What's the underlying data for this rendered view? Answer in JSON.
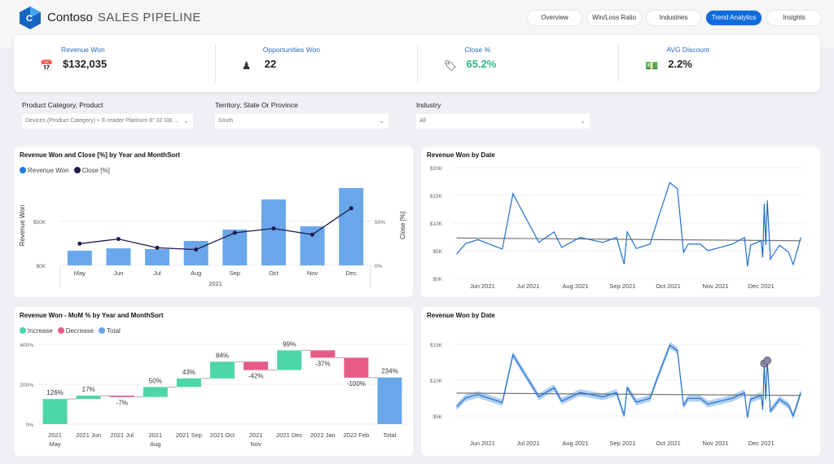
{
  "header": {
    "brand": "Contoso",
    "title": "SALES PIPELINE",
    "logo_letter": "C",
    "tabs": [
      {
        "label": "Overview",
        "active": false
      },
      {
        "label": "Win/Loss Ratio",
        "active": false
      },
      {
        "label": "Industries",
        "active": false
      },
      {
        "label": "Trend Analytics",
        "active": true
      },
      {
        "label": "Insights",
        "active": false
      }
    ]
  },
  "kpis": [
    {
      "label": "Revenue Won",
      "value": "$132,035",
      "icon": "calendar-icon"
    },
    {
      "label": "Opportunities Won",
      "value": "22",
      "icon": "person-icon"
    },
    {
      "label": "Close %",
      "value": "65.2%",
      "icon": "percent-tag-icon",
      "color": "#2bb57e"
    },
    {
      "label": "AVG Discount",
      "value": "2.2%",
      "icon": "money-icon"
    }
  ],
  "filters": [
    {
      "label": "Product Category, Product",
      "value": "Devices (Product Category) + E-reader Platinum 8\" 32 GB ..."
    },
    {
      "label": "Territory, State Or Province",
      "value": "South"
    },
    {
      "label": "Industry",
      "value": "All"
    }
  ],
  "colors": {
    "accent": "#0f6cdb",
    "bar": "#6aa7ea",
    "line": "#1f1b4d",
    "increase": "#4fd6a8",
    "decrease": "#e75b85",
    "total": "#6aa7ea",
    "trend": "#1f6fce"
  },
  "chart_data": [
    {
      "type": "bar",
      "title": "Revenue Won and Close [%] by Year and MonthSort",
      "xlabel": "2021",
      "ylabel": "Revenue Won",
      "y2label": "Close [%]",
      "categories": [
        "May",
        "Jun",
        "Jul",
        "Aug",
        "Sep",
        "Oct",
        "Nov",
        "Dec"
      ],
      "series": [
        {
          "name": "Revenue Won",
          "type": "bar",
          "values": [
            16700,
            19400,
            18500,
            27800,
            40700,
            75000,
            44400,
            88000
          ]
        },
        {
          "name": "Close [%]",
          "type": "line",
          "values": [
            24.7,
            30,
            20,
            18,
            37,
            42,
            35,
            65
          ]
        }
      ],
      "yticks": [
        "$0K",
        "$50K"
      ],
      "y2ticks": [
        "0%",
        "50%"
      ],
      "ylim": [
        0,
        100000
      ],
      "y2lim": [
        0,
        100
      ],
      "legend": "top-left"
    },
    {
      "type": "bar",
      "title": "Revenue Won - MoM % by Year and MonthSort",
      "subtype": "waterfall",
      "categories": [
        "2021 May",
        "2021 Jun",
        "2021 Jul",
        "2021 Aug",
        "2021 Sep",
        "2021 Oct",
        "2021 Nov",
        "2021 Dec",
        "2022 Jan",
        "2022 Feb",
        "Total"
      ],
      "values": [
        126,
        17,
        -7,
        50,
        43,
        84,
        -42,
        99,
        -37,
        -100,
        234
      ],
      "labels": [
        "126%",
        "17%",
        "-7%",
        "50%",
        "43%",
        "84%",
        "-42%",
        "99%",
        "-37%",
        "-100%",
        "234%"
      ],
      "legend_entries": [
        "Increase",
        "Decrease",
        "Total"
      ],
      "yticks": [
        "0%",
        "200%",
        "400%"
      ],
      "ylim": [
        0,
        400
      ]
    },
    {
      "type": "line",
      "title": "Revenue Won by Date",
      "xticks": [
        "Jun 2021",
        "Jul 2021",
        "Aug 2021",
        "Sep 2021",
        "Oct 2021",
        "Nov 2021",
        "Dec 2021"
      ],
      "yticks": [
        "$0K",
        "$5K",
        "$10K",
        "$15K",
        "$20K"
      ],
      "ylim": [
        0,
        20000
      ],
      "trendline": [
        7300,
        6800
      ],
      "x": [
        "2021-05-15",
        "2021-05-21",
        "2021-05-29",
        "2021-06-14",
        "2021-06-21",
        "2021-07-08",
        "2021-07-18",
        "2021-07-23",
        "2021-08-04",
        "2021-08-19",
        "2021-08-28",
        "2021-09-02",
        "2021-09-04",
        "2021-09-10",
        "2021-09-19",
        "2021-09-24",
        "2021-10-02",
        "2021-10-07",
        "2021-10-11",
        "2021-10-14",
        "2021-10-22",
        "2021-10-27",
        "2021-11-12",
        "2021-11-20",
        "2021-11-22",
        "2021-11-24",
        "2021-12-01",
        "2021-12-02",
        "2021-12-03",
        "2021-12-04",
        "2021-12-05",
        "2021-12-07",
        "2021-12-13",
        "2021-12-19",
        "2021-12-22",
        "2021-12-27"
      ],
      "y": [
        4400,
        6300,
        7000,
        5300,
        15300,
        6500,
        8400,
        5600,
        7400,
        6500,
        7400,
        2600,
        8400,
        5400,
        6200,
        10600,
        17300,
        16200,
        4700,
        6200,
        6200,
        5000,
        6200,
        7400,
        2200,
        6000,
        6800,
        3800,
        13500,
        6000,
        14100,
        3500,
        6000,
        4700,
        2500,
        7400
      ]
    },
    {
      "type": "line",
      "title": "Revenue Won by Date",
      "xticks": [
        "Jun 2021",
        "Jul 2021",
        "Aug 2021",
        "Sep 2021",
        "Oct 2021",
        "Nov 2021",
        "Dec 2021"
      ],
      "yticks": [
        "$5K",
        "$10K",
        "$15K"
      ],
      "ylim": [
        2500,
        17500
      ],
      "trendline": [
        7300,
        6800
      ],
      "band": true,
      "anomalies": [
        "2021-12-03",
        "2021-12-05"
      ]
    }
  ]
}
